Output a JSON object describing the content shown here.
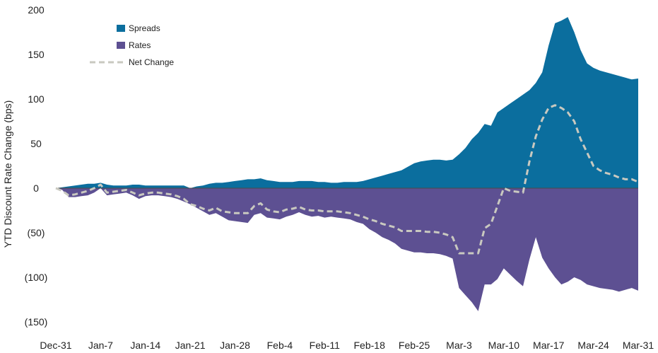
{
  "chart_data": {
    "type": "area",
    "ylabel": "YTD Discount Rate Change (bps)",
    "xlabel": "",
    "ylim": [
      -150,
      200
    ],
    "yticks": [
      {
        "value": 200,
        "label": "200"
      },
      {
        "value": 150,
        "label": "150"
      },
      {
        "value": 100,
        "label": "100"
      },
      {
        "value": 50,
        "label": "50"
      },
      {
        "value": 0,
        "label": "0"
      },
      {
        "value": -50,
        "label": "(50)"
      },
      {
        "value": -100,
        "label": "(100)"
      },
      {
        "value": -150,
        "label": "(150)"
      }
    ],
    "xticks": [
      {
        "day": 0,
        "label": "Dec-31"
      },
      {
        "day": 7,
        "label": "Jan-7"
      },
      {
        "day": 14,
        "label": "Jan-14"
      },
      {
        "day": 21,
        "label": "Jan-21"
      },
      {
        "day": 28,
        "label": "Jan-28"
      },
      {
        "day": 35,
        "label": "Feb-4"
      },
      {
        "day": 42,
        "label": "Feb-11"
      },
      {
        "day": 49,
        "label": "Feb-18"
      },
      {
        "day": 56,
        "label": "Feb-25"
      },
      {
        "day": 63,
        "label": "Mar-3"
      },
      {
        "day": 70,
        "label": "Mar-10"
      },
      {
        "day": 77,
        "label": "Mar-17"
      },
      {
        "day": 84,
        "label": "Mar-24"
      },
      {
        "day": 91,
        "label": "Mar-31"
      }
    ],
    "x": [
      0,
      1,
      2,
      3,
      4,
      5,
      6,
      7,
      8,
      9,
      10,
      11,
      12,
      13,
      14,
      15,
      16,
      17,
      18,
      19,
      20,
      21,
      22,
      23,
      24,
      25,
      26,
      27,
      28,
      29,
      30,
      31,
      32,
      33,
      34,
      35,
      36,
      37,
      38,
      39,
      40,
      41,
      42,
      43,
      44,
      45,
      46,
      47,
      48,
      49,
      50,
      51,
      52,
      53,
      54,
      55,
      56,
      57,
      58,
      59,
      60,
      61,
      62,
      63,
      64,
      65,
      66,
      67,
      68,
      69,
      70,
      71,
      72,
      73,
      74,
      75,
      76,
      77,
      78,
      79,
      80,
      81,
      82,
      83,
      84,
      85,
      86,
      87,
      88,
      89,
      90,
      91
    ],
    "legend": {
      "position": "top-left"
    },
    "series": [
      {
        "name": "Spreads",
        "color": "#0b6e9e",
        "values": [
          0,
          1,
          2,
          3,
          4,
          5,
          5,
          6,
          4,
          3,
          3,
          3,
          4,
          4,
          3,
          3,
          3,
          3,
          3,
          3,
          3,
          0,
          2,
          3,
          5,
          6,
          6,
          7,
          8,
          9,
          10,
          10,
          11,
          9,
          8,
          7,
          7,
          7,
          8,
          8,
          8,
          7,
          7,
          6,
          6,
          7,
          7,
          7,
          8,
          10,
          12,
          14,
          16,
          18,
          20,
          24,
          28,
          30,
          31,
          32,
          32,
          31,
          32,
          38,
          45,
          55,
          62,
          72,
          70,
          85,
          90,
          95,
          100,
          105,
          110,
          118,
          130,
          160,
          185,
          188,
          192,
          175,
          155,
          140,
          135,
          132,
          130,
          128,
          126,
          124,
          122,
          123
        ]
      },
      {
        "name": "Rates",
        "color": "#5d5092",
        "values": [
          0,
          -2,
          -10,
          -10,
          -9,
          -8,
          -5,
          0,
          -8,
          -7,
          -6,
          -5,
          -8,
          -12,
          -9,
          -8,
          -8,
          -9,
          -10,
          -12,
          -15,
          -18,
          -22,
          -26,
          -30,
          -28,
          -32,
          -36,
          -37,
          -38,
          -39,
          -30,
          -28,
          -33,
          -34,
          -35,
          -32,
          -30,
          -27,
          -30,
          -32,
          -31,
          -33,
          -32,
          -33,
          -34,
          -35,
          -38,
          -40,
          -46,
          -50,
          -55,
          -58,
          -62,
          -68,
          -70,
          -72,
          -72,
          -73,
          -73,
          -74,
          -76,
          -79,
          -112,
          -120,
          -128,
          -138,
          -108,
          -108,
          -102,
          -90,
          -97,
          -104,
          -110,
          -80,
          -55,
          -78,
          -90,
          -100,
          -108,
          -105,
          -100,
          -103,
          -108,
          -110,
          -112,
          -113,
          -114,
          -116,
          -114,
          -112,
          -115
        ]
      },
      {
        "name": "Net Change",
        "color": "#c9c9c0",
        "values": [
          0,
          -3,
          -8,
          -7,
          -5,
          -3,
          0,
          4,
          -5,
          -4,
          -3,
          -2,
          -5,
          -8,
          -6,
          -5,
          -5,
          -6,
          -7,
          -9,
          -12,
          -18,
          -20,
          -23,
          -25,
          -22,
          -26,
          -27,
          -28,
          -28,
          -28,
          -20,
          -17,
          -24,
          -26,
          -27,
          -24,
          -23,
          -21,
          -24,
          -25,
          -25,
          -26,
          -26,
          -26,
          -27,
          -28,
          -30,
          -32,
          -35,
          -37,
          -40,
          -42,
          -44,
          -48,
          -48,
          -48,
          -48,
          -49,
          -49,
          -50,
          -52,
          -55,
          -73,
          -73,
          -73,
          -73,
          -45,
          -40,
          -20,
          0,
          -3,
          -4,
          -5,
          30,
          58,
          77,
          90,
          93,
          90,
          85,
          75,
          55,
          40,
          25,
          20,
          17,
          15,
          12,
          10,
          10,
          7
        ]
      }
    ]
  }
}
